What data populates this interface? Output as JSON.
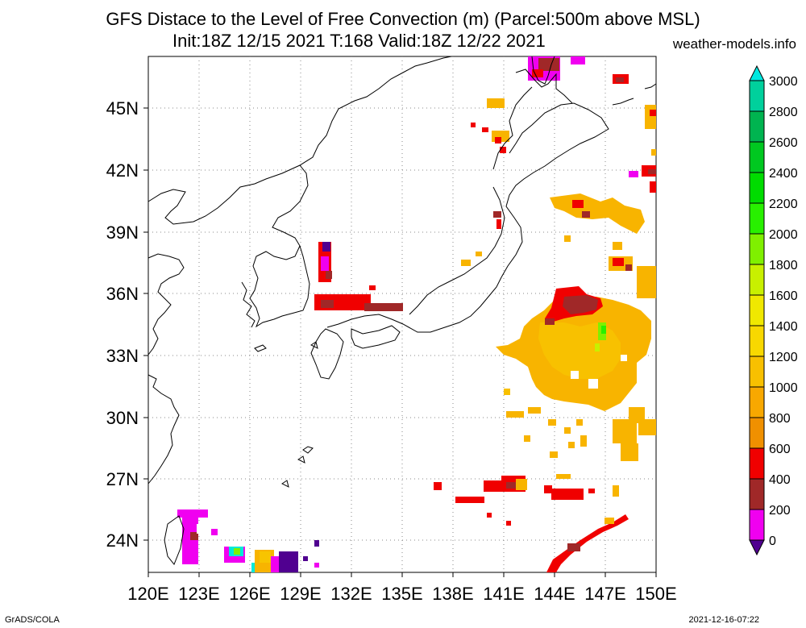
{
  "header": {
    "title": "GFS Distace to the Level of Free Convection (m) (Parcel:500m above MSL)",
    "subtitle": "Init:18Z 12/15 2021 T:168 Valid:18Z 12/22 2021",
    "site": "weather-models.info"
  },
  "footer": {
    "left": "GrADS/COLA",
    "right": "2021-12-16-07:22"
  },
  "map": {
    "lon_range": [
      120,
      150
    ],
    "lat_range": [
      22.5,
      47.5
    ],
    "lat_ticks": [
      "45N",
      "42N",
      "39N",
      "36N",
      "33N",
      "30N",
      "27N",
      "24N"
    ],
    "lon_ticks": [
      "120E",
      "123E",
      "126E",
      "129E",
      "132E",
      "135E",
      "138E",
      "141E",
      "144E",
      "147E",
      "150E"
    ],
    "grid": true
  },
  "colorbar": {
    "labels": [
      "3000",
      "2800",
      "2600",
      "2400",
      "2200",
      "2000",
      "1800",
      "1600",
      "1400",
      "1200",
      "1000",
      "800",
      "600",
      "400",
      "200",
      "0"
    ],
    "colors": [
      "#00e8e0",
      "#00d09c",
      "#00b450",
      "#00c820",
      "#00dc00",
      "#28f000",
      "#7ff000",
      "#c8f000",
      "#f0e800",
      "#f8d800",
      "#f8c000",
      "#f8a800",
      "#f09000",
      "#f00000",
      "#a02828",
      "#f000f0",
      "#500090"
    ]
  },
  "colors": {
    "red": "#f00000",
    "orange": "#f0a000",
    "yellow_orange": "#f8c400",
    "brown": "#a02828",
    "magenta": "#f000f0",
    "purple": "#500090",
    "green": "#50e000",
    "cyan": "#00e8d8"
  }
}
